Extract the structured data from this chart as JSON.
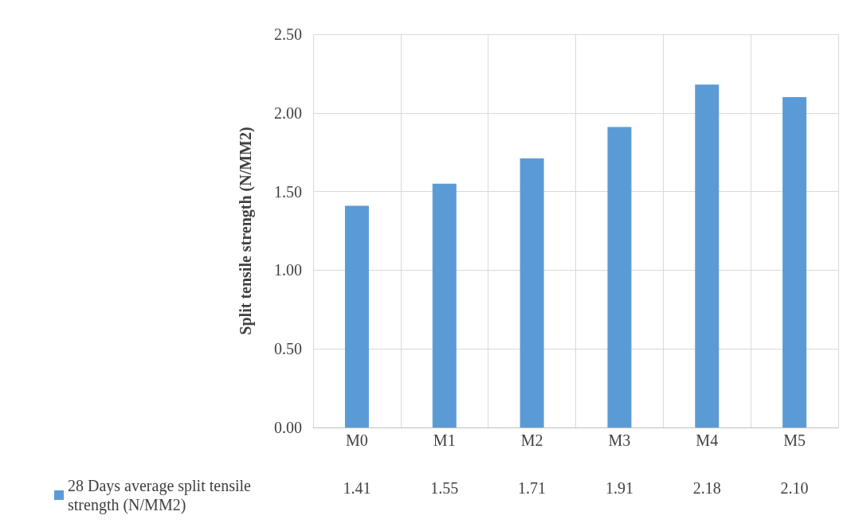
{
  "chart_data": {
    "type": "bar",
    "ylabel": "Split tensile strength (N/MM2)",
    "categories": [
      "M0",
      "M1",
      "M2",
      "M3",
      "M4",
      "M5"
    ],
    "series": [
      {
        "name": "28 Days average split tensile strength (N/MM2)",
        "color": "#5b9bd5",
        "values": [
          1.41,
          1.55,
          1.71,
          1.91,
          2.18,
          2.1
        ],
        "value_labels": [
          "1.41",
          "1.55",
          "1.71",
          "1.91",
          "2.18",
          "2.10"
        ]
      }
    ],
    "ylim": [
      0,
      2.5
    ],
    "yticks": [
      {
        "value": 0,
        "label": "0.00"
      },
      {
        "value": 0.5,
        "label": "0.50"
      },
      {
        "value": 1,
        "label": "1.00"
      },
      {
        "value": 1.5,
        "label": "1.50"
      },
      {
        "value": 2,
        "label": "2.00"
      },
      {
        "value": 2.5,
        "label": "2.50"
      }
    ],
    "grid": true,
    "legend": "bottom left"
  }
}
